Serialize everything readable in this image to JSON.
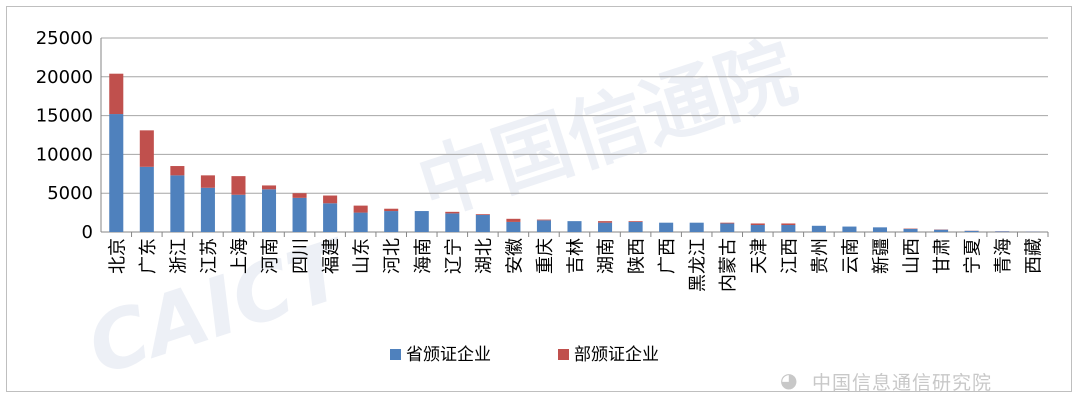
{
  "chart_data": {
    "type": "bar",
    "stacked": true,
    "title": "",
    "xlabel": "",
    "ylabel": "",
    "ylim": [
      0,
      25000
    ],
    "yticks": [
      0,
      5000,
      10000,
      15000,
      20000,
      25000
    ],
    "grid": true,
    "legend_position": "bottom",
    "categories": [
      "北京",
      "广东",
      "浙江",
      "江苏",
      "上海",
      "河南",
      "四川",
      "福建",
      "山东",
      "河北",
      "海南",
      "辽宁",
      "湖北",
      "安徽",
      "重庆",
      "吉林",
      "湖南",
      "陕西",
      "广西",
      "黑龙江",
      "内蒙古",
      "天津",
      "江西",
      "贵州",
      "云南",
      "新疆",
      "山西",
      "甘肃",
      "宁夏",
      "青海",
      "西藏"
    ],
    "series": [
      {
        "name": "省颁证企业",
        "color": "#4f81bd",
        "values": [
          15200,
          8400,
          7300,
          5700,
          4800,
          5500,
          4400,
          3700,
          2500,
          2700,
          2700,
          2400,
          2200,
          1300,
          1500,
          1400,
          1200,
          1300,
          1200,
          1200,
          1100,
          900,
          900,
          800,
          700,
          600,
          400,
          300,
          150,
          80,
          40
        ]
      },
      {
        "name": "部颁证企业",
        "color": "#c0504d",
        "values": [
          5200,
          4700,
          1200,
          1600,
          2400,
          500,
          600,
          1000,
          900,
          300,
          0,
          200,
          100,
          400,
          100,
          0,
          200,
          100,
          0,
          0,
          100,
          200,
          200,
          0,
          0,
          0,
          50,
          30,
          20,
          20,
          10
        ]
      }
    ]
  },
  "watermark": {
    "text": "中国信息通信研究院",
    "big_text": "中国信通院",
    "logo_text": "CAICT"
  }
}
